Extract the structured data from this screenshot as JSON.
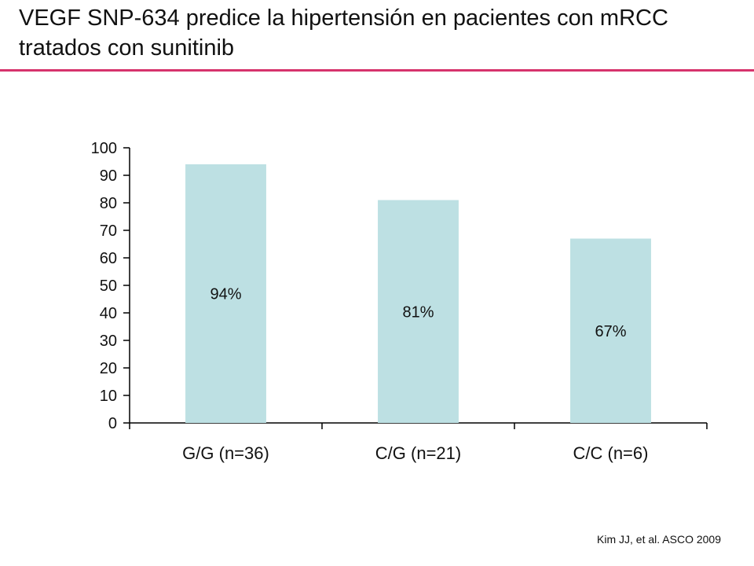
{
  "slide": {
    "title": "VEGF SNP-634 predice la hipertensión en pacientes con mRCC tratados con sunitinib",
    "citation": "Kim JJ, et al. ASCO 2009",
    "accent_color": "#d6336c"
  },
  "chart_data": {
    "type": "bar",
    "title": "",
    "xlabel": "",
    "ylabel": "",
    "categories": [
      "G/G (n=36)",
      "C/G (n=21)",
      "C/C (n=6)"
    ],
    "values": [
      94,
      81,
      67
    ],
    "data_labels": [
      "94%",
      "81%",
      "67%"
    ],
    "ylim": [
      0,
      100
    ],
    "yticks": [
      0,
      10,
      20,
      30,
      40,
      50,
      60,
      70,
      80,
      90,
      100
    ],
    "bar_color": "#bde0e3",
    "grid": false,
    "legend": "none"
  }
}
